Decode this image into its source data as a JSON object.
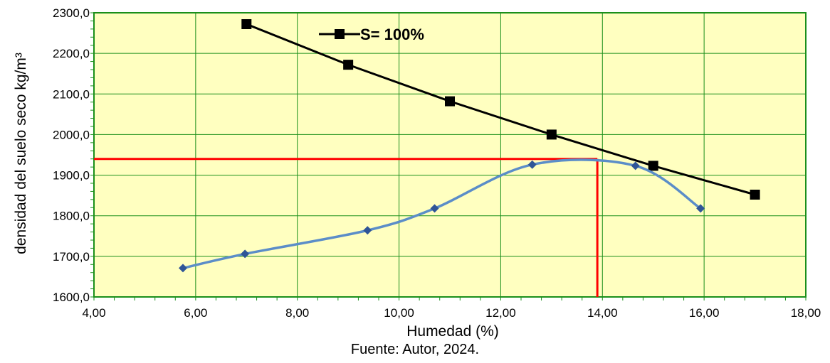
{
  "chart_data": {
    "type": "line",
    "xlabel": "Humedad (%)",
    "ylabel": "densidad del suelo seco kg/m³",
    "xlim": [
      4,
      18
    ],
    "ylim": [
      1600,
      2300
    ],
    "x_ticks": [
      "4,00",
      "6,00",
      "8,00",
      "10,00",
      "12,00",
      "14,00",
      "16,00",
      "18,00"
    ],
    "y_ticks": [
      "1600,0",
      "1700,0",
      "1800,0",
      "1900,0",
      "2000,0",
      "2100,0",
      "2200,0",
      "2300,0"
    ],
    "grid": true,
    "legend_position": "top-center",
    "colors": {
      "plot_background": "#ffffc0",
      "grid": "#1a8f1a",
      "saturation_line": "#000000",
      "compaction_curve": "#5b8dc8",
      "compaction_marker": "#2f5597",
      "optimum_line": "#ff0000"
    },
    "series": [
      {
        "name": "S= 100%",
        "marker": "square",
        "x": [
          7,
          9,
          11,
          13,
          15,
          17
        ],
        "y": [
          2272,
          2172,
          2082,
          2000,
          1923,
          1852
        ]
      },
      {
        "marker": "diamond",
        "smooth": true,
        "x": [
          5.75,
          6.97,
          9.38,
          10.7,
          12.62,
          14.65,
          15.93
        ],
        "y": [
          1671,
          1706,
          1764,
          1818,
          1926,
          1923,
          1818
        ]
      }
    ],
    "optimum": {
      "x": 13.9,
      "y": 1940
    }
  },
  "caption": "Fuente: Autor, 2024."
}
